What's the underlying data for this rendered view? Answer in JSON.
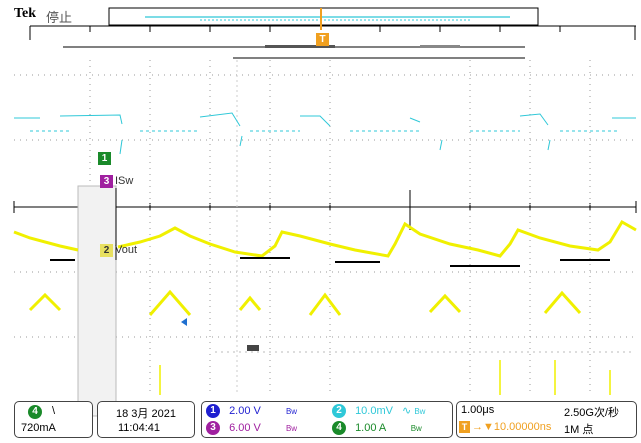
{
  "header": {
    "brand": "Tek",
    "acq_status": "停止",
    "trigger_marker": "T"
  },
  "markers": {
    "ch1": "1",
    "ch3_label": "ISw",
    "ch3": "3",
    "ch2_label": "Vout",
    "ch2": "2"
  },
  "trigger_panel": {
    "channel": "4",
    "slope_symbol": "\\",
    "level": "720mA"
  },
  "datetime": {
    "date": "18 3月 2021",
    "time": "11:04:41"
  },
  "channels": [
    {
      "number": "1",
      "scale": "2.00 V",
      "coupling": "Bw",
      "color": "#1f1fd0"
    },
    {
      "number": "2",
      "scale": "10.0mV",
      "coupling": "Bw",
      "color": "#2fc8d8"
    },
    {
      "number": "3",
      "scale": "6.00 V",
      "coupling": "Bw",
      "color": "#a020a0"
    },
    {
      "number": "4",
      "scale": "1.00 A",
      "coupling": "Bw",
      "color": "#1a8a2a"
    }
  ],
  "timebase": {
    "scale": "1.00μs",
    "trigger_pos": "T",
    "delay": "→▼10.00000ns",
    "sample_rate": "2.50G次/秒",
    "record_length": "1M 点"
  },
  "colors": {
    "ch1": "#1f1fd0",
    "ch2": "#2fc8d8",
    "ch3": "#a020a0",
    "ch4": "#1a8a2a",
    "yellow_trace": "#f0f000",
    "trigger_orange": "#f0a020"
  }
}
